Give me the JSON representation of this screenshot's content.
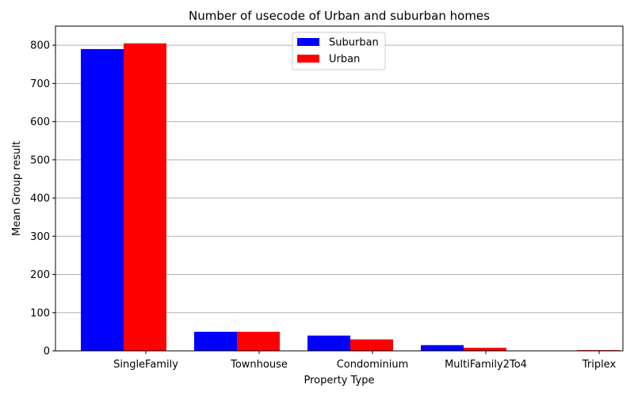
{
  "chart_data": {
    "type": "bar",
    "title": "Number of usecode of Urban and suburban homes",
    "xlabel": "Property Type",
    "ylabel": "Mean Group result",
    "categories": [
      "SingleFamily",
      "Townhouse",
      "Condominium",
      "MultiFamily2To4",
      "Triplex"
    ],
    "series": [
      {
        "name": "Suburban",
        "color": "#0000ff",
        "values": [
          790,
          50,
          40,
          15,
          0
        ]
      },
      {
        "name": "Urban",
        "color": "#ff0000",
        "values": [
          805,
          50,
          30,
          8,
          2
        ]
      }
    ],
    "ylim": [
      0,
      850
    ],
    "yticks": [
      0,
      100,
      200,
      300,
      400,
      500,
      600,
      700,
      800
    ],
    "grid": "y",
    "legend_position": "top-center"
  }
}
